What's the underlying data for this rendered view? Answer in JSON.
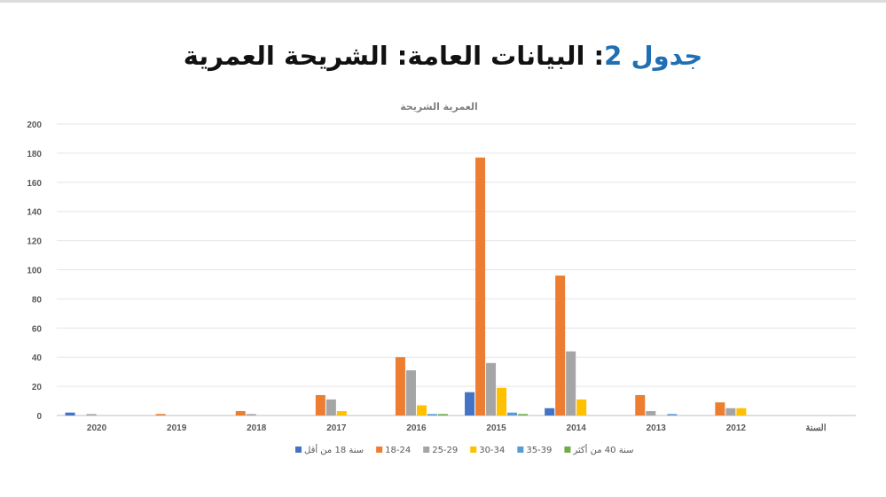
{
  "header": {
    "prefix": "جدول",
    "number": "2",
    "rest": ": البيانات العامة: الشريحة العمرية"
  },
  "chart_data": {
    "type": "bar",
    "title": "العمرية الشريحة",
    "categories": [
      "2020",
      "2019",
      "2018",
      "2017",
      "2016",
      "2015",
      "2014",
      "2013",
      "2012",
      "السنة"
    ],
    "ylim": [
      0,
      200
    ],
    "yticks": [
      0,
      20,
      40,
      60,
      80,
      100,
      120,
      140,
      160,
      180,
      200
    ],
    "grid": true,
    "legend_position": "bottom",
    "series": [
      {
        "name": "سنة 18 من أقل",
        "color": "#4472c4",
        "values": [
          2,
          0,
          0,
          0,
          0,
          16,
          5,
          0,
          0,
          0
        ]
      },
      {
        "name": "18-24",
        "color": "#ed7d31",
        "values": [
          0,
          1,
          3,
          14,
          40,
          177,
          96,
          14,
          9,
          0
        ]
      },
      {
        "name": "25-29",
        "color": "#a5a5a5",
        "values": [
          1,
          0,
          1,
          11,
          31,
          36,
          44,
          3,
          5,
          0
        ]
      },
      {
        "name": "30-34",
        "color": "#ffc000",
        "values": [
          0,
          0,
          0,
          3,
          7,
          19,
          11,
          0,
          5,
          0
        ]
      },
      {
        "name": "35-39",
        "color": "#5b9bd5",
        "values": [
          0,
          0,
          0,
          0,
          1,
          2,
          0,
          1,
          0,
          0
        ]
      },
      {
        "name": "سنة 40 من أكثر",
        "color": "#70ad47",
        "values": [
          0,
          0,
          0,
          0,
          1,
          1,
          0,
          0,
          0,
          0
        ]
      }
    ]
  }
}
